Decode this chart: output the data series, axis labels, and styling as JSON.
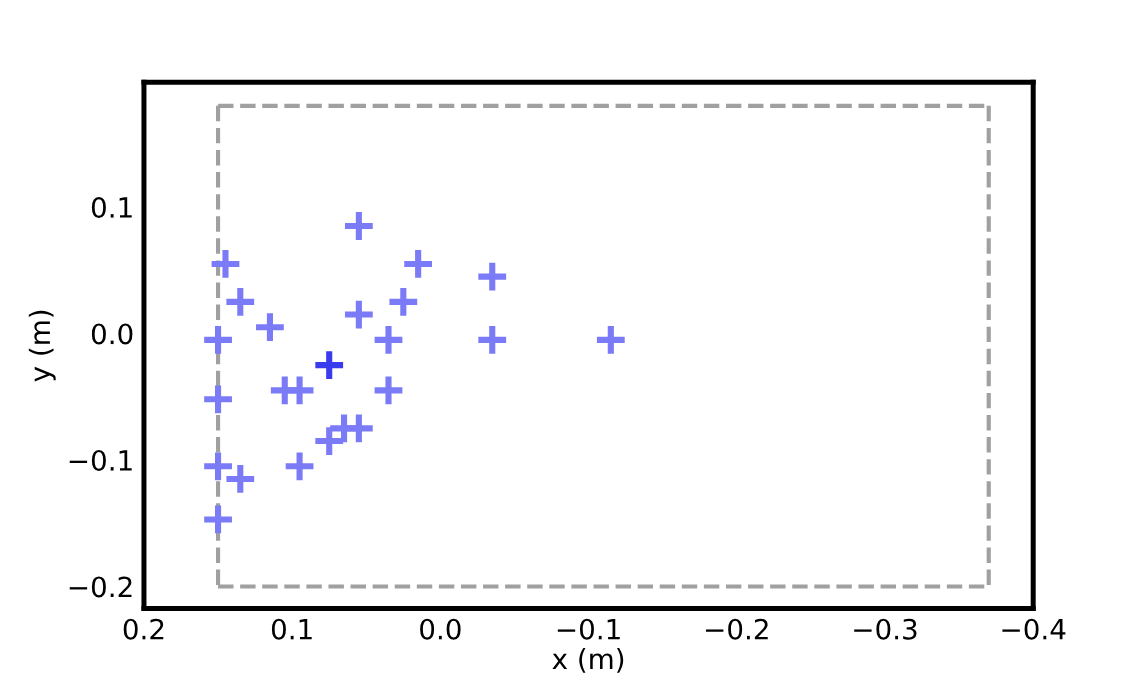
{
  "chart_data": {
    "type": "scatter",
    "xlabel": "x (m)",
    "ylabel": "y (m)",
    "xlim": [
      0.2,
      -0.4
    ],
    "ylim": [
      -0.2174,
      0.1986
    ],
    "xticks": [
      {
        "value": 0.2,
        "label": "0.2"
      },
      {
        "value": 0.1,
        "label": "0.1"
      },
      {
        "value": 0.0,
        "label": "0.0"
      },
      {
        "value": -0.1,
        "label": "−0.1"
      },
      {
        "value": -0.2,
        "label": "−0.2"
      },
      {
        "value": -0.3,
        "label": "−0.3"
      },
      {
        "value": -0.4,
        "label": "−0.4"
      }
    ],
    "yticks": [
      {
        "value": 0.1,
        "label": "0.1"
      },
      {
        "value": 0.0,
        "label": "0.0"
      },
      {
        "value": -0.1,
        "label": "−0.1"
      },
      {
        "value": -0.2,
        "label": "−0.2"
      }
    ],
    "grid": false,
    "marker": "cross",
    "series": [
      {
        "x": [
          0.055,
          0.145,
          0.015,
          -0.035,
          0.135,
          0.025,
          0.055,
          0.115,
          0.15,
          0.035,
          -0.035,
          -0.115,
          0.075,
          0.105,
          0.095,
          0.035,
          0.15,
          0.065,
          0.055,
          0.075,
          0.15,
          0.095,
          0.135,
          0.15
        ],
        "values": [
          0.085,
          0.055,
          0.055,
          0.045,
          0.025,
          0.025,
          0.015,
          0.005,
          -0.005,
          -0.005,
          -0.005,
          -0.005,
          -0.025,
          -0.045,
          -0.045,
          -0.045,
          -0.052,
          -0.075,
          -0.075,
          -0.085,
          -0.105,
          -0.105,
          -0.115,
          -0.147
        ],
        "colors": [
          "#7b7bf7",
          "#7b7bf7",
          "#7b7bf7",
          "#7b7bf7",
          "#7b7bf7",
          "#7b7bf7",
          "#7b7bf7",
          "#7b7bf7",
          "#7b7bf7",
          "#7b7bf7",
          "#7b7bf7",
          "#7b7bf7",
          "#3a3aee",
          "#7b7bf7",
          "#7b7bf7",
          "#7b7bf7",
          "#7b7bf7",
          "#7b7bf7",
          "#7b7bf7",
          "#7b7bf7",
          "#7b7bf7",
          "#7b7bf7",
          "#7b7bf7",
          "#7b7bf7"
        ]
      },
      {
        "type": "line",
        "color": "#a0a0a0",
        "line_style": "dashed",
        "marker": "none",
        "x": [
          0.15,
          -0.37
        ],
        "values": [
          0.18,
          0.18
        ]
      },
      {
        "type": "line",
        "color": "#a0a0a0",
        "line_style": "dashed",
        "marker": "none",
        "x": [
          -0.37,
          -0.37
        ],
        "values": [
          0.18,
          -0.2
        ]
      },
      {
        "type": "line",
        "color": "#a0a0a0",
        "line_style": "dashed",
        "marker": "none",
        "x": [
          0.15,
          -0.37
        ],
        "values": [
          -0.2,
          -0.2
        ]
      },
      {
        "type": "line",
        "color": "#a0a0a0",
        "line_style": "dashed",
        "marker": "none",
        "x": [
          0.15,
          0.15
        ],
        "values": [
          0.18,
          -0.2
        ]
      }
    ]
  }
}
